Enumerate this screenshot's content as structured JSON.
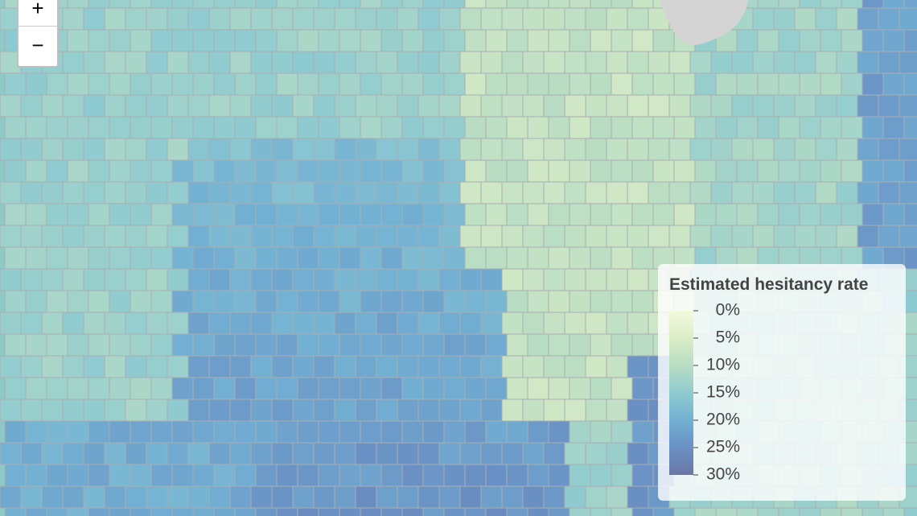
{
  "zoom_controls": {
    "zoom_in": "+",
    "zoom_out": "−"
  },
  "legend": {
    "title": "Estimated hesitancy rate",
    "ticks": [
      {
        "value": 0,
        "label": "0%"
      },
      {
        "value": 5,
        "label": "5%"
      },
      {
        "value": 10,
        "label": "10%"
      },
      {
        "value": 15,
        "label": "15%"
      },
      {
        "value": 20,
        "label": "20%"
      },
      {
        "value": 25,
        "label": "25%"
      },
      {
        "value": 30,
        "label": "30%"
      }
    ],
    "colors": [
      "#f4f9dc",
      "#dcedc6",
      "#b8ddc3",
      "#8fcbd0",
      "#72b0d3",
      "#6a90c4",
      "#6b77a6"
    ]
  }
}
